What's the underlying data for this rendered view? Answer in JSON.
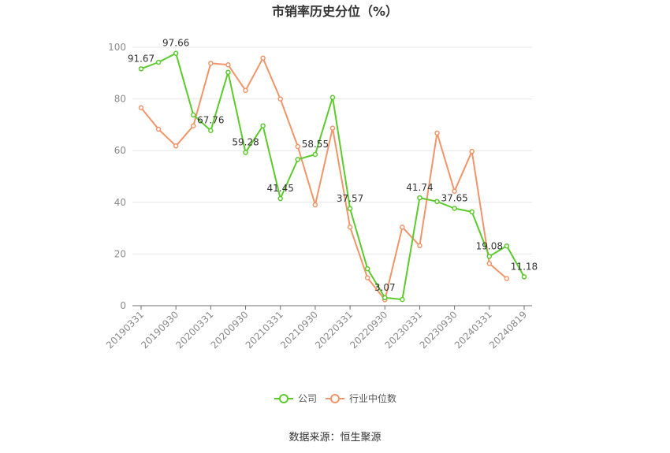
{
  "chart_data": {
    "type": "line",
    "title": "市销率历史分位（%）",
    "xlabel": "",
    "ylabel": "",
    "ylim": [
      0,
      100
    ],
    "yticks": [
      0,
      20,
      40,
      60,
      80,
      100
    ],
    "grid": true,
    "legend_position": "bottom",
    "categories": [
      "20190331",
      "20190630",
      "20190930",
      "20191231",
      "20200331",
      "20200630",
      "20200930",
      "20201231",
      "20210331",
      "20210630",
      "20210930",
      "20211231",
      "20220331",
      "20220630",
      "20220930",
      "20221231",
      "20230331",
      "20230630",
      "20230930",
      "20231231",
      "20240331",
      "20240630",
      "20240819"
    ],
    "tick_labels": [
      "20190331",
      "20190930",
      "20200331",
      "20200930",
      "20210331",
      "20210930",
      "20220331",
      "20220930",
      "20230331",
      "20230930",
      "20240331",
      "20240819"
    ],
    "tick_indices": [
      0,
      2,
      4,
      6,
      8,
      10,
      12,
      14,
      16,
      18,
      20,
      22
    ],
    "series": [
      {
        "name": "公司",
        "color": "#5cc92c",
        "values": [
          91.67,
          94.2,
          97.66,
          73.8,
          67.76,
          90.3,
          59.28,
          69.6,
          41.45,
          56.6,
          58.55,
          80.6,
          37.57,
          14.3,
          3.07,
          2.4,
          41.74,
          40.3,
          37.65,
          36.3,
          19.08,
          23.1,
          11.18
        ],
        "labels": [
          "91.67",
          "",
          "97.66",
          "",
          "67.76",
          "",
          "59.28",
          "",
          "41.45",
          "",
          "58.55",
          "",
          "37.57",
          "",
          "3.07",
          "",
          "41.74",
          "",
          "37.65",
          "",
          "19.08",
          "",
          "11.18"
        ]
      },
      {
        "name": "行业中位数",
        "color": "#f0956a",
        "values": [
          76.6,
          68.3,
          61.8,
          69.6,
          93.8,
          93.2,
          83.3,
          95.8,
          80.0,
          61.6,
          39.0,
          68.7,
          30.4,
          10.8,
          2.3,
          30.4,
          23.2,
          66.8,
          44.3,
          59.7,
          16.3,
          10.5,
          null
        ],
        "labels": []
      }
    ],
    "source": "数据来源：恒生聚源"
  }
}
